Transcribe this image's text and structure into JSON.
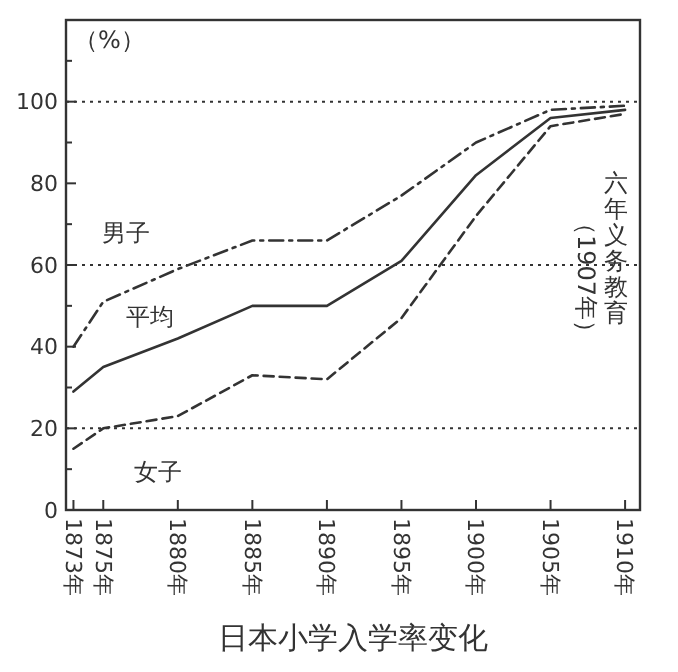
{
  "chart_data": {
    "type": "line",
    "title": "日本小学入学率变化",
    "ylabel": "（%）",
    "x": [
      1873,
      1875,
      1880,
      1885,
      1890,
      1895,
      1900,
      1905,
      1910
    ],
    "series": [
      {
        "name": "男子",
        "color": "#333333",
        "line_style": "dashdot",
        "values": [
          40,
          51,
          59,
          66,
          66,
          77,
          90,
          98,
          99
        ]
      },
      {
        "name": "平均",
        "color": "#333333",
        "line_style": "solid",
        "values": [
          29,
          35,
          42,
          50,
          50,
          61,
          82,
          96,
          98
        ]
      },
      {
        "name": "女子",
        "color": "#333333",
        "line_style": "dashed",
        "values": [
          15,
          20,
          23,
          33,
          32,
          47,
          72,
          94,
          97
        ]
      }
    ],
    "xlim": [
      1872.5,
      1911
    ],
    "xticks": [
      {
        "value": 1873,
        "label": "1873年"
      },
      {
        "value": 1875,
        "label": "1875年"
      },
      {
        "value": 1880,
        "label": "1880年"
      },
      {
        "value": 1885,
        "label": "1885年"
      },
      {
        "value": 1890,
        "label": "1890年"
      },
      {
        "value": 1895,
        "label": "1895年"
      },
      {
        "value": 1900,
        "label": "1900年"
      },
      {
        "value": 1905,
        "label": "1905年"
      },
      {
        "value": 1910,
        "label": "1910年"
      }
    ],
    "ylim": [
      0,
      120
    ],
    "yticks": [
      0,
      {
        "value": 10,
        "label": null
      },
      20,
      {
        "value": 30,
        "label": null
      },
      40,
      {
        "value": 50,
        "label": null
      },
      60,
      {
        "value": 70,
        "label": null
      },
      80,
      {
        "value": 90,
        "label": null
      },
      100,
      {
        "value": 110,
        "label": null
      }
    ],
    "ref_lines": [
      {
        "axis": "y",
        "value": 20,
        "color": "#333333",
        "line_style": "dotted"
      },
      {
        "axis": "y",
        "value": 60,
        "color": "#333333",
        "line_style": "dotted"
      },
      {
        "axis": "y",
        "value": 100,
        "color": "#333333",
        "line_style": "dotted"
      }
    ],
    "annotations": [
      "六年义务教育",
      "（1907年）"
    ],
    "grid": false,
    "marker": "none"
  }
}
